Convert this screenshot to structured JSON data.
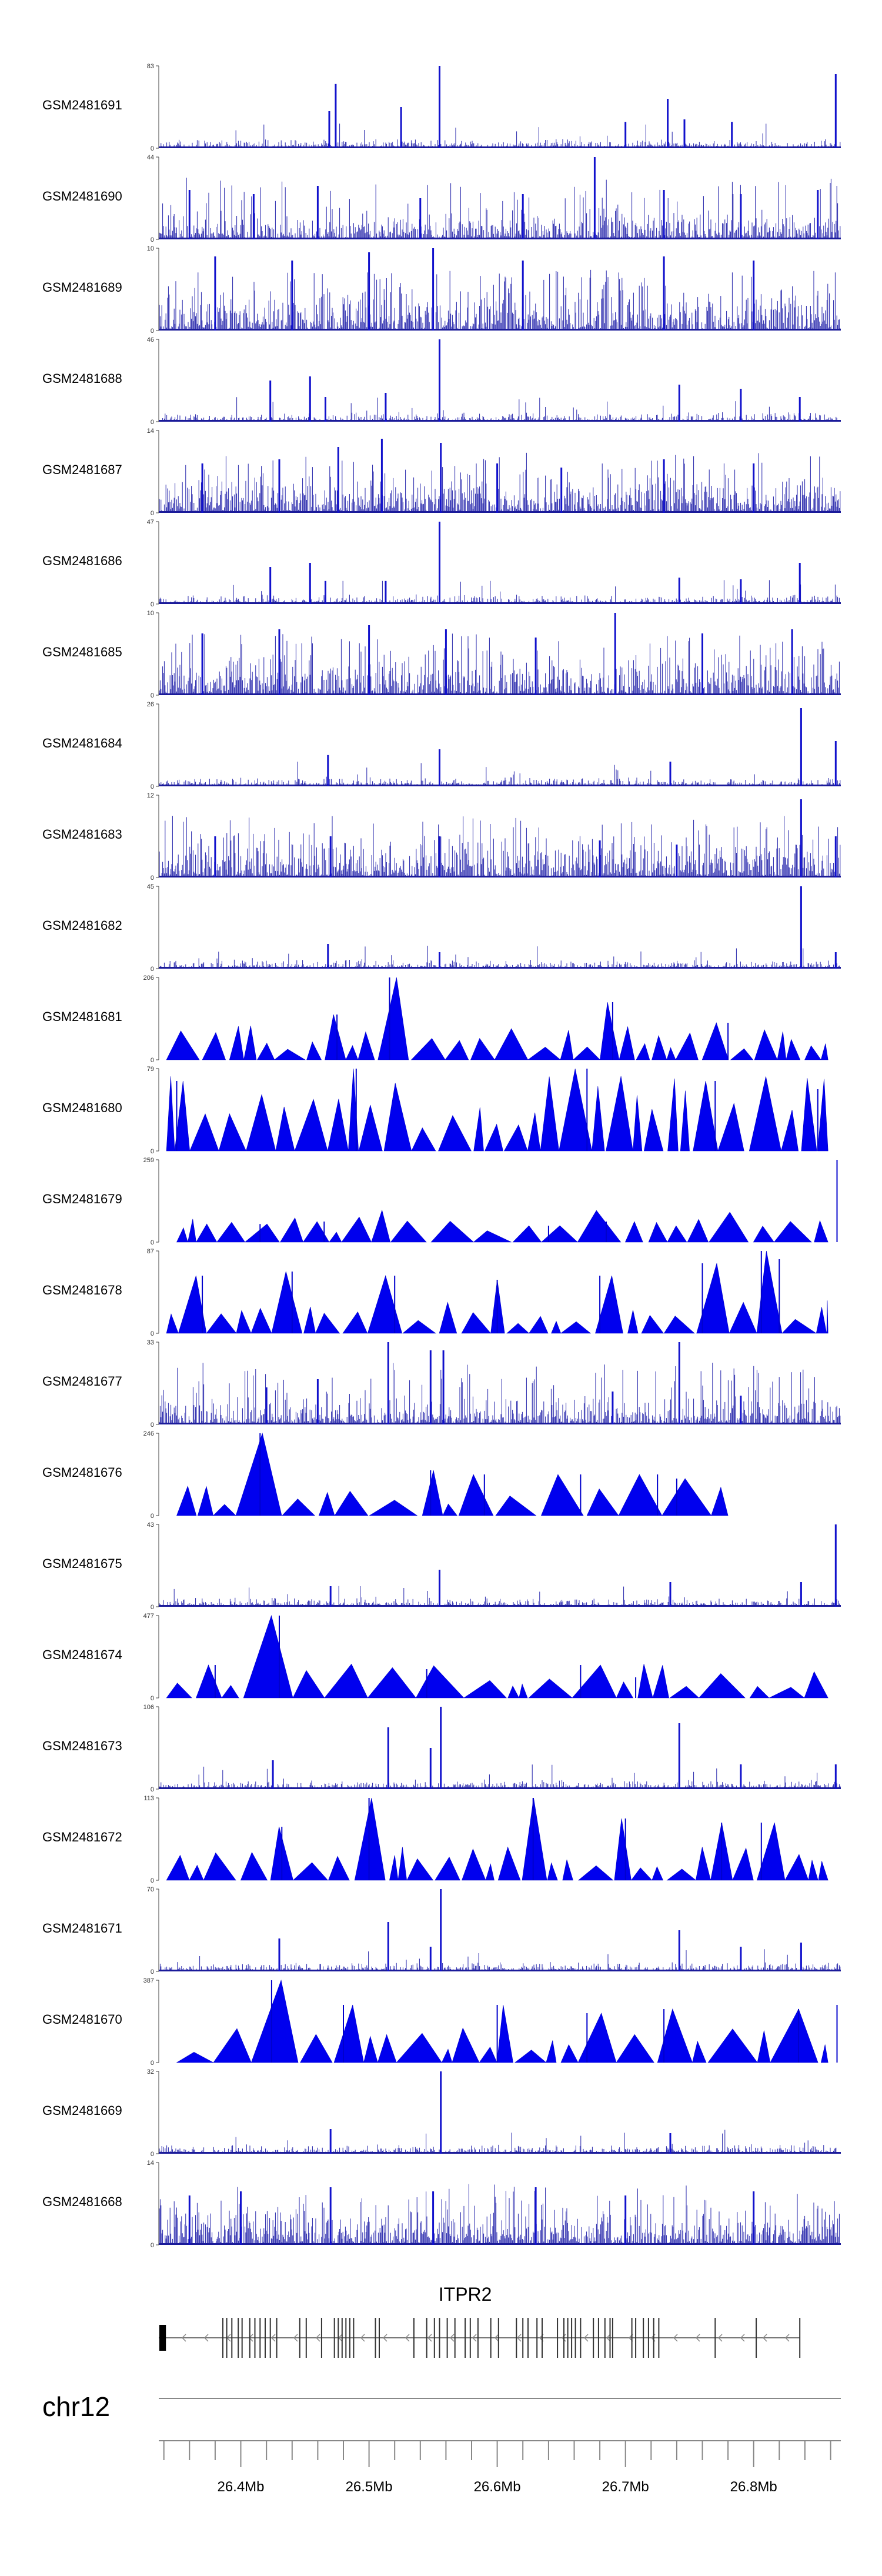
{
  "chart_data": {
    "type": "area",
    "chromosome": "chr12",
    "x_unit": "Mb",
    "xlim": [
      26.336,
      26.868
    ],
    "x_ticks": [
      {
        "value": 26.4,
        "label": "26.4Mb"
      },
      {
        "value": 26.5,
        "label": "26.5Mb"
      },
      {
        "value": 26.6,
        "label": "26.6Mb"
      },
      {
        "value": 26.7,
        "label": "26.7Mb"
      },
      {
        "value": 26.8,
        "label": "26.8Mb"
      }
    ],
    "minor_tick_step": 0.02,
    "tracks": [
      {
        "name": "GSM2481691",
        "ymax": 83,
        "ymin_label": "0",
        "style": "bars",
        "peaks": [
          [
            26.469,
            0.45
          ],
          [
            26.474,
            0.78
          ],
          [
            26.525,
            0.5
          ],
          [
            26.555,
            1.0
          ],
          [
            26.7,
            0.32
          ],
          [
            26.733,
            0.6
          ],
          [
            26.746,
            0.35
          ],
          [
            26.783,
            0.32
          ],
          [
            26.864,
            0.9
          ]
        ]
      },
      {
        "name": "GSM2481690",
        "ymax": 44,
        "ymin_label": "0",
        "style": "bars",
        "peaks": [
          [
            26.36,
            0.6
          ],
          [
            26.41,
            0.55
          ],
          [
            26.46,
            0.65
          ],
          [
            26.54,
            0.5
          ],
          [
            26.62,
            0.55
          ],
          [
            26.676,
            1.0
          ],
          [
            26.73,
            0.6
          ],
          [
            26.79,
            0.55
          ],
          [
            26.85,
            0.6
          ]
        ]
      },
      {
        "name": "GSM2481689",
        "ymax": 10,
        "ymin_label": "0",
        "style": "bars",
        "peaks": [
          [
            26.38,
            0.9
          ],
          [
            26.44,
            0.85
          ],
          [
            26.5,
            0.95
          ],
          [
            26.55,
            1.0
          ],
          [
            26.62,
            0.85
          ],
          [
            26.73,
            0.9
          ],
          [
            26.8,
            0.85
          ]
        ]
      },
      {
        "name": "GSM2481688",
        "ymax": 46,
        "ymin_label": "0",
        "style": "bars",
        "peaks": [
          [
            26.423,
            0.5
          ],
          [
            26.454,
            0.55
          ],
          [
            26.466,
            0.3
          ],
          [
            26.513,
            0.35
          ],
          [
            26.555,
            1.0
          ],
          [
            26.742,
            0.45
          ],
          [
            26.79,
            0.4
          ],
          [
            26.836,
            0.3
          ]
        ]
      },
      {
        "name": "GSM2481687",
        "ymax": 14,
        "ymin_label": "0",
        "style": "bars",
        "peaks": [
          [
            26.37,
            0.6
          ],
          [
            26.43,
            0.65
          ],
          [
            26.476,
            0.8
          ],
          [
            26.51,
            0.9
          ],
          [
            26.556,
            0.85
          ],
          [
            26.6,
            0.6
          ],
          [
            26.65,
            0.55
          ],
          [
            26.73,
            0.65
          ],
          [
            26.8,
            0.6
          ]
        ]
      },
      {
        "name": "GSM2481686",
        "ymax": 47,
        "ymin_label": "0",
        "style": "bars",
        "peaks": [
          [
            26.423,
            0.45
          ],
          [
            26.454,
            0.5
          ],
          [
            26.466,
            0.28
          ],
          [
            26.513,
            0.28
          ],
          [
            26.555,
            1.0
          ],
          [
            26.742,
            0.32
          ],
          [
            26.79,
            0.3
          ],
          [
            26.836,
            0.5
          ]
        ]
      },
      {
        "name": "GSM2481685",
        "ymax": 10,
        "ymin_label": "0",
        "style": "bars",
        "peaks": [
          [
            26.37,
            0.75
          ],
          [
            26.43,
            0.8
          ],
          [
            26.5,
            0.85
          ],
          [
            26.56,
            0.8
          ],
          [
            26.63,
            0.7
          ],
          [
            26.692,
            1.0
          ],
          [
            26.76,
            0.75
          ],
          [
            26.83,
            0.8
          ]
        ]
      },
      {
        "name": "GSM2481684",
        "ymax": 26,
        "ymin_label": "0",
        "style": "bars",
        "peaks": [
          [
            26.468,
            0.38
          ],
          [
            26.555,
            0.45
          ],
          [
            26.735,
            0.3
          ],
          [
            26.837,
            0.95
          ],
          [
            26.864,
            0.55
          ]
        ]
      },
      {
        "name": "GSM2481683",
        "ymax": 12,
        "ymin_label": "0",
        "style": "bars",
        "peaks": [
          [
            26.38,
            0.5
          ],
          [
            26.47,
            0.5
          ],
          [
            26.555,
            0.5
          ],
          [
            26.68,
            0.45
          ],
          [
            26.74,
            0.4
          ],
          [
            26.837,
            0.95
          ],
          [
            26.864,
            0.5
          ]
        ]
      },
      {
        "name": "GSM2481682",
        "ymax": 45,
        "ymin_label": "0",
        "style": "bars",
        "peaks": [
          [
            26.468,
            0.3
          ],
          [
            26.555,
            0.2
          ],
          [
            26.837,
            1.0
          ],
          [
            26.864,
            0.2
          ]
        ]
      },
      {
        "name": "GSM2481681",
        "ymax": 206,
        "ymin_label": "0",
        "style": "triangles",
        "peaks": [
          [
            26.516,
            1.0
          ],
          [
            26.69,
            0.7
          ],
          [
            26.475,
            0.55
          ],
          [
            26.78,
            0.45
          ]
        ]
      },
      {
        "name": "GSM2481680",
        "ymax": 79,
        "ymin_label": "0",
        "style": "triangles",
        "peaks": [
          [
            26.35,
            0.85
          ],
          [
            26.49,
            1.0
          ],
          [
            26.67,
            1.0
          ],
          [
            26.77,
            0.85
          ],
          [
            26.85,
            0.75
          ]
        ]
      },
      {
        "name": "GSM2481679",
        "ymax": 259,
        "ymin_label": "0",
        "style": "triangles",
        "peaks": [
          [
            26.415,
            0.22
          ],
          [
            26.465,
            0.25
          ],
          [
            26.64,
            0.2
          ],
          [
            26.685,
            0.25
          ],
          [
            26.865,
            1.0
          ]
        ]
      },
      {
        "name": "GSM2481678",
        "ymax": 87,
        "ymin_label": "0",
        "style": "triangles",
        "peaks": [
          [
            26.37,
            0.7
          ],
          [
            26.44,
            0.75
          ],
          [
            26.52,
            0.7
          ],
          [
            26.6,
            0.65
          ],
          [
            26.68,
            0.7
          ],
          [
            26.76,
            0.85
          ],
          [
            26.806,
            1.0
          ],
          [
            26.82,
            0.9
          ]
        ]
      },
      {
        "name": "GSM2481677",
        "ymax": 33,
        "ymin_label": "0",
        "style": "bars",
        "peaks": [
          [
            26.42,
            0.45
          ],
          [
            26.46,
            0.55
          ],
          [
            26.515,
            1.0
          ],
          [
            26.548,
            0.9
          ],
          [
            26.558,
            0.9
          ],
          [
            26.69,
            0.4
          ],
          [
            26.742,
            1.0
          ],
          [
            26.79,
            0.35
          ]
        ]
      },
      {
        "name": "GSM2481676",
        "ymax": 246,
        "ymin_label": "0",
        "style": "triangles",
        "peaks": [
          [
            26.415,
            1.0
          ],
          [
            26.548,
            0.55
          ],
          [
            26.59,
            0.5
          ],
          [
            26.665,
            0.5
          ],
          [
            26.725,
            0.5
          ],
          [
            26.74,
            0.45
          ]
        ]
      },
      {
        "name": "GSM2481675",
        "ymax": 43,
        "ymin_label": "0",
        "style": "bars",
        "peaks": [
          [
            26.47,
            0.25
          ],
          [
            26.555,
            0.45
          ],
          [
            26.735,
            0.3
          ],
          [
            26.837,
            0.3
          ],
          [
            26.864,
            1.0
          ]
        ]
      },
      {
        "name": "GSM2481674",
        "ymax": 477,
        "ymin_label": "0",
        "style": "triangles",
        "peaks": [
          [
            26.43,
            1.0
          ],
          [
            26.38,
            0.4
          ],
          [
            26.545,
            0.35
          ],
          [
            26.665,
            0.4
          ],
          [
            26.708,
            0.25
          ]
        ]
      },
      {
        "name": "GSM2481673",
        "ymax": 106,
        "ymin_label": "0",
        "style": "bars",
        "peaks": [
          [
            26.425,
            0.35
          ],
          [
            26.515,
            0.75
          ],
          [
            26.548,
            0.5
          ],
          [
            26.556,
            1.0
          ],
          [
            26.742,
            0.8
          ],
          [
            26.79,
            0.3
          ],
          [
            26.864,
            0.3
          ]
        ]
      },
      {
        "name": "GSM2481672",
        "ymax": 113,
        "ymin_label": "0",
        "style": "triangles",
        "peaks": [
          [
            26.432,
            0.65
          ],
          [
            26.5,
            1.0
          ],
          [
            26.628,
            1.0
          ],
          [
            26.7,
            0.75
          ],
          [
            26.775,
            0.7
          ],
          [
            26.806,
            0.7
          ]
        ]
      },
      {
        "name": "GSM2481671",
        "ymax": 70,
        "ymin_label": "0",
        "style": "bars",
        "peaks": [
          [
            26.43,
            0.4
          ],
          [
            26.515,
            0.6
          ],
          [
            26.548,
            0.3
          ],
          [
            26.556,
            1.0
          ],
          [
            26.742,
            0.5
          ],
          [
            26.79,
            0.3
          ],
          [
            26.837,
            0.35
          ]
        ]
      },
      {
        "name": "GSM2481670",
        "ymax": 387,
        "ymin_label": "0",
        "style": "triangles",
        "peaks": [
          [
            26.424,
            1.0
          ],
          [
            26.48,
            0.7
          ],
          [
            26.6,
            0.7
          ],
          [
            26.67,
            0.6
          ],
          [
            26.73,
            0.65
          ],
          [
            26.835,
            0.65
          ],
          [
            26.865,
            0.7
          ]
        ]
      },
      {
        "name": "GSM2481669",
        "ymax": 32,
        "ymin_label": "0",
        "style": "bars",
        "peaks": [
          [
            26.47,
            0.3
          ],
          [
            26.556,
            1.0
          ],
          [
            26.735,
            0.25
          ]
        ]
      },
      {
        "name": "GSM2481668",
        "ymax": 14,
        "ymin_label": "0",
        "style": "bars",
        "peaks": [
          [
            26.36,
            0.6
          ],
          [
            26.4,
            0.65
          ],
          [
            26.47,
            0.7
          ],
          [
            26.55,
            0.65
          ],
          [
            26.63,
            0.7
          ],
          [
            26.7,
            0.6
          ],
          [
            26.8,
            0.65
          ]
        ]
      }
    ],
    "gene": {
      "name": "ITPR2",
      "start": 26.336,
      "end": 26.836,
      "strand": "-",
      "exons": [
        26.338,
        26.339,
        26.34,
        26.386,
        26.389,
        26.393,
        26.398,
        26.401,
        26.407,
        26.411,
        26.415,
        26.419,
        26.423,
        26.428,
        26.446,
        26.451,
        26.463,
        26.473,
        26.476,
        26.479,
        26.482,
        26.485,
        26.488,
        26.505,
        26.508,
        26.535,
        26.545,
        26.551,
        26.555,
        26.561,
        26.567,
        26.575,
        26.579,
        26.585,
        26.595,
        26.601,
        26.615,
        26.62,
        26.624,
        26.631,
        26.635,
        26.647,
        26.652,
        26.655,
        26.658,
        26.661,
        26.665,
        26.675,
        26.679,
        26.684,
        26.688,
        26.69,
        26.705,
        26.708,
        26.714,
        26.718,
        26.722,
        26.726,
        26.77,
        26.802,
        26.836
      ]
    }
  }
}
